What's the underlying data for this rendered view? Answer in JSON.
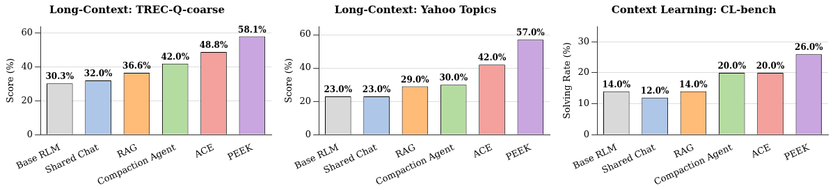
{
  "chart_data": [
    {
      "type": "bar",
      "title": "Long-Context: TREC-Q-coarse",
      "ylabel": "Score (%)",
      "categories": [
        "Base RLM",
        "Shared Chat",
        "RAG",
        "Compaction Agent",
        "ACE",
        "PEEK"
      ],
      "values": [
        30.3,
        32.0,
        36.6,
        42.0,
        48.8,
        58.1
      ],
      "colors": [
        "#d9d9d9",
        "#aec7e8",
        "#ffbb78",
        "#b5dca0",
        "#f4a09c",
        "#c9a6e0"
      ],
      "value_labels": [
        "30.3%",
        "32.0%",
        "36.6%",
        "42.0%",
        "48.8%",
        "58.1%"
      ],
      "ylim": [
        0,
        64
      ],
      "yticks": [
        0,
        20,
        40,
        60
      ],
      "grid": "y",
      "legend": false
    },
    {
      "type": "bar",
      "title": "Long-Context: Yahoo Topics",
      "ylabel": "Score (%)",
      "categories": [
        "Base RLM",
        "Shared Chat",
        "RAG",
        "Compaction Agent",
        "ACE",
        "PEEK"
      ],
      "values": [
        23.0,
        23.0,
        29.0,
        30.0,
        42.0,
        57.0
      ],
      "colors": [
        "#d9d9d9",
        "#aec7e8",
        "#ffbb78",
        "#b5dca0",
        "#f4a09c",
        "#c9a6e0"
      ],
      "value_labels": [
        "23.0%",
        "23.0%",
        "29.0%",
        "30.0%",
        "42.0%",
        "57.0%"
      ],
      "ylim": [
        0,
        65
      ],
      "yticks": [
        0,
        20,
        40,
        60
      ],
      "grid": "y",
      "legend": false
    },
    {
      "type": "bar",
      "title": "Context Learning: CL-bench",
      "ylabel": "Solving Rate (%)",
      "categories": [
        "Base RLM",
        "Shared Chat",
        "RAG",
        "Compaction Agent",
        "ACE",
        "PEEK"
      ],
      "values": [
        14.0,
        12.0,
        14.0,
        20.0,
        20.0,
        26.0
      ],
      "colors": [
        "#d9d9d9",
        "#aec7e8",
        "#ffbb78",
        "#b5dca0",
        "#f4a09c",
        "#c9a6e0"
      ],
      "value_labels": [
        "14.0%",
        "12.0%",
        "14.0%",
        "20.0%",
        "20.0%",
        "26.0%"
      ],
      "ylim": [
        0,
        35
      ],
      "yticks": [
        0,
        10,
        20,
        30
      ],
      "grid": "y",
      "legend": false
    }
  ]
}
